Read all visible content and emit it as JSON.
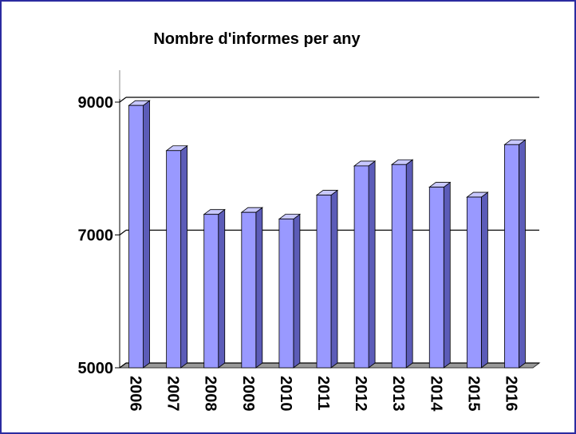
{
  "chart_data": {
    "type": "bar",
    "title": "Nombre d'informes per any",
    "categories": [
      "2006",
      "2007",
      "2008",
      "2009",
      "2010",
      "2011",
      "2012",
      "2013",
      "2014",
      "2015",
      "2016"
    ],
    "values": [
      8950,
      8270,
      7310,
      7340,
      7240,
      7600,
      8040,
      8060,
      7720,
      7570,
      8360
    ],
    "color": "#9999ff",
    "ylim": [
      5000,
      9000
    ],
    "yticks": [
      5000,
      7000,
      9000
    ],
    "grid": true
  }
}
